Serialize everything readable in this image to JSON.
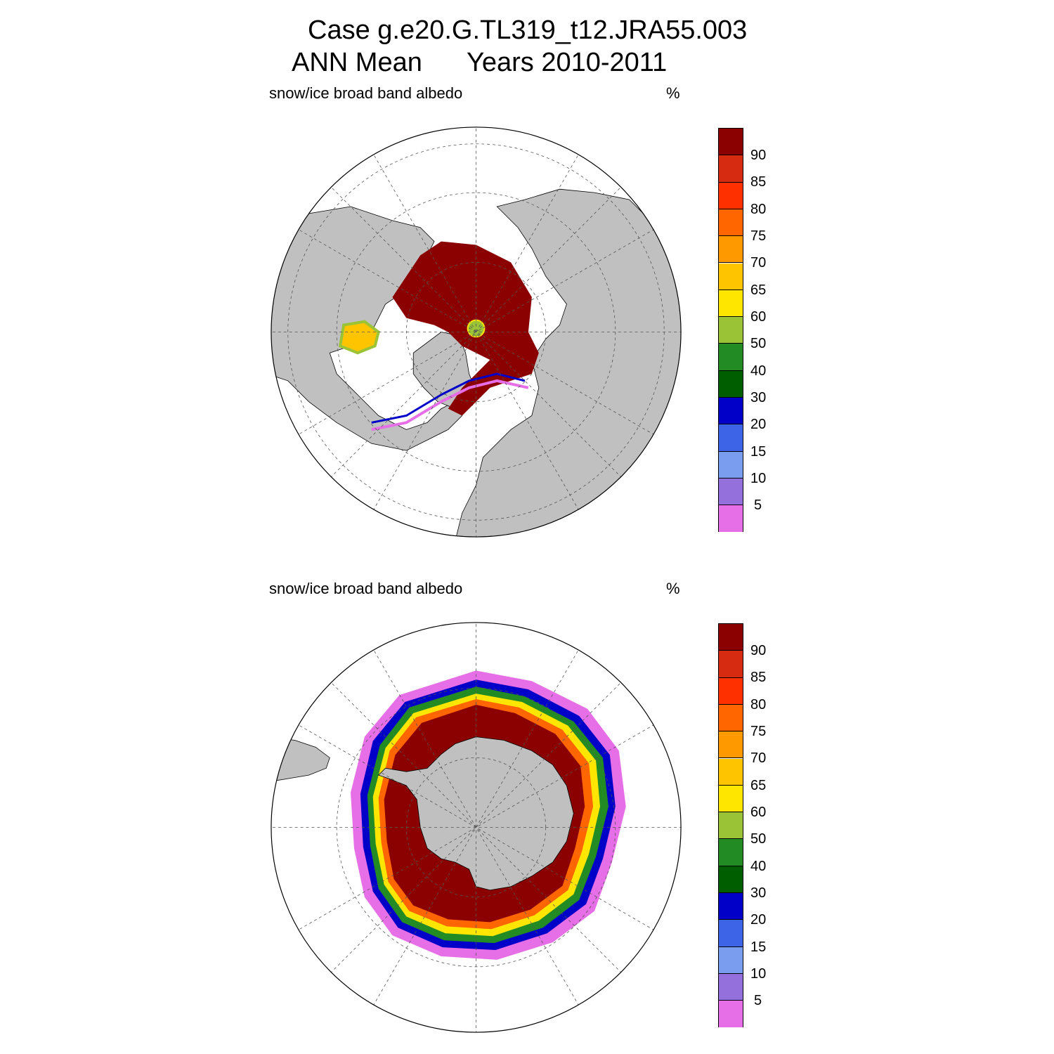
{
  "title": {
    "line1": "Case g.e20.G.TL319_t12.JRA55.003",
    "line2_left": "ANN Mean",
    "line2_right": "Years 2010-2011"
  },
  "panels": [
    {
      "name": "north",
      "left_label": "snow/ice broad band albedo",
      "right_label": "%"
    },
    {
      "name": "south",
      "left_label": "snow/ice broad band albedo",
      "right_label": "%"
    }
  ],
  "colorbar": {
    "levels": [
      "90",
      "85",
      "80",
      "75",
      "70",
      "65",
      "60",
      "50",
      "40",
      "30",
      "20",
      "15",
      "10",
      "5"
    ],
    "colors": [
      "#8b0000",
      "#d62b10",
      "#ff3000",
      "#ff6600",
      "#ff9900",
      "#ffc400",
      "#ffe600",
      "#9ac436",
      "#238b23",
      "#005e00",
      "#0000c8",
      "#3d64e6",
      "#7b9df0",
      "#9370db",
      "#e66ee6"
    ]
  },
  "map_colors": {
    "land": "#c0c0c0",
    "ocean": "#ffffff",
    "ice_max": "#8b0000"
  }
}
